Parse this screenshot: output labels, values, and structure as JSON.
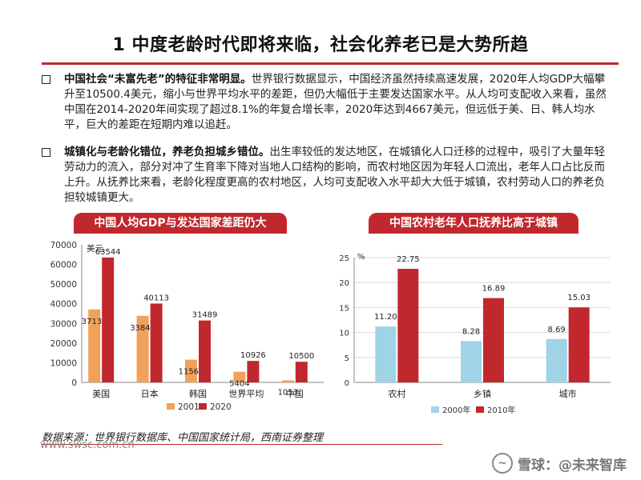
{
  "title": "1 中度老龄时代即将来临，社会化养老已是大势所趋",
  "bullets": [
    {
      "lead": "中国社会“未富先老”的特征非常明显。",
      "text": "世界银行数据显示，中国经济虽然持续高速发展，2020年人均GDP大幅攀升至10500.4美元，缩小与世界平均水平的差距，但仍大幅低于主要发达国家水平。从人均可支配收入来看，虽然中国在2014-2020年间实现了超过8.1%的年复合增长率，2020年达到4667美元，但远低于美、日、韩人均水平，巨大的差距在短期内难以追赶。"
    },
    {
      "lead": "城镇化与老龄化错位，养老负担城乡错位。",
      "text": "出生率较低的发达地区，在城镇化人口迁移的过程中，吸引了大量年轻劳动力的流入，部分对冲了生育率下降对当地人口结构的影响，而农村地区因为年轻人口流出，老年人口占比反而上升。从抚养比来看，老龄化程度更高的农村地区，人均可支配收入水平却大大低于城镇，农村劳动人口的养老负担较城镇更大。"
    }
  ],
  "banners": {
    "left": "中国人均GDP与发达国家差距仍大",
    "right": "中国农村老年人口抚养比高于城镇"
  },
  "colors": {
    "accent": "#c0282d",
    "series_a": "#f0a15a",
    "series_b": "#c0282d",
    "series_c": "#9fd3e6"
  },
  "chart_data": [
    {
      "type": "bar",
      "unit": "美元",
      "categories": [
        "美国",
        "日本",
        "韩国",
        "世界平均",
        "中国"
      ],
      "series": [
        {
          "name": "2001",
          "values": [
            37133,
            33846,
            11561,
            5404,
            1053
          ]
        },
        {
          "name": "2020",
          "values": [
            63544,
            40113,
            31489,
            10926,
            10500
          ]
        }
      ],
      "ylim": [
        0,
        70000
      ],
      "yticks": [
        0,
        10000,
        20000,
        30000,
        40000,
        50000,
        60000,
        70000
      ],
      "grid": false,
      "legend": "bottom"
    },
    {
      "type": "bar",
      "unit": "%",
      "categories": [
        "农村",
        "乡镇",
        "城市"
      ],
      "series": [
        {
          "name": "2000年",
          "values": [
            11.2,
            8.28,
            8.69
          ]
        },
        {
          "name": "2010年",
          "values": [
            22.75,
            16.89,
            15.03
          ]
        }
      ],
      "ylim": [
        0,
        25
      ],
      "yticks": [
        0,
        5,
        10,
        15,
        20,
        25
      ],
      "grid": true,
      "legend": "bottom"
    }
  ],
  "source": "数据来源：世界银行数据库、中国国家统计局，西南证券整理",
  "site": "www.swsc.com.cn",
  "watermark": "雪球：@未来智库"
}
